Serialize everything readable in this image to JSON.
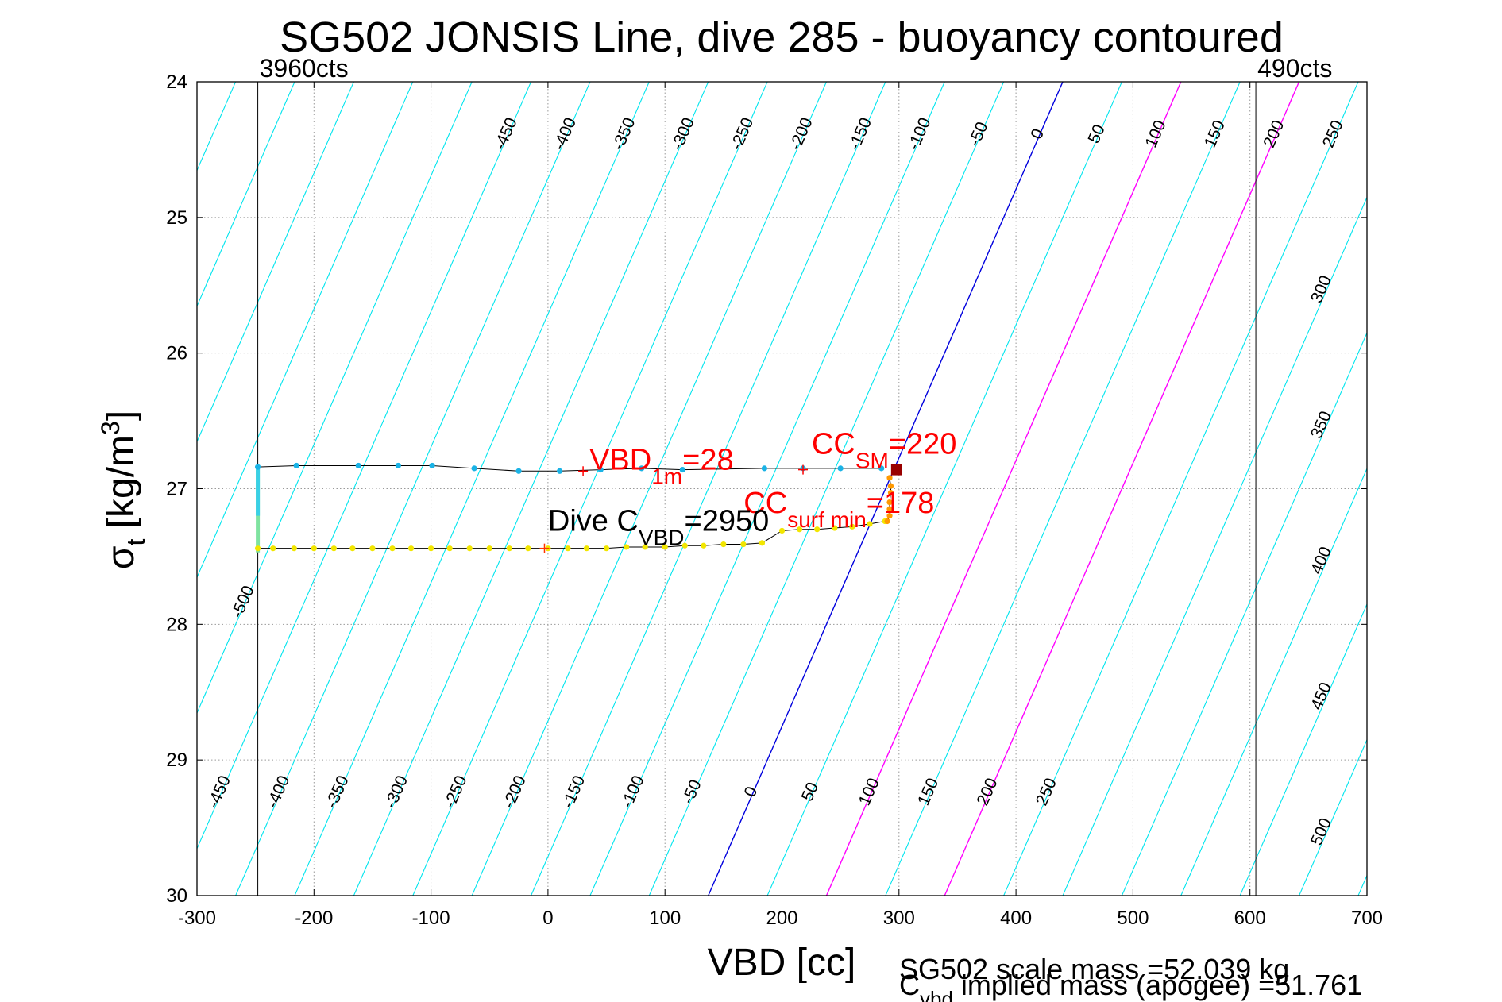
{
  "chart_data": {
    "type": "line",
    "title": "SG502 JONSIS Line, dive 285 - buoyancy contoured",
    "xlabel": "VBD [cc]",
    "ylabel": {
      "main": "σ",
      "sub": "t",
      "unit": " [kg/m",
      "sup": "3",
      "close": "]"
    },
    "xlim": [
      -300,
      700
    ],
    "ylim": [
      24,
      30
    ],
    "y_reversed": true,
    "grid": true,
    "xticks": [
      -300,
      -200,
      -100,
      0,
      100,
      200,
      300,
      400,
      500,
      600,
      700
    ],
    "yticks": [
      24,
      25,
      26,
      27,
      28,
      29,
      30
    ],
    "xtick_labels": [
      "-300",
      "-200",
      "-100",
      "0",
      "100",
      "200",
      "300",
      "400",
      "500",
      "600",
      "700"
    ],
    "ytick_labels": [
      "24",
      "25",
      "26",
      "27",
      "28",
      "29",
      "30"
    ],
    "vertical_limits": [
      {
        "x": -248,
        "label": "3960cts"
      },
      {
        "x": 605,
        "label": "490cts"
      }
    ],
    "buoyancy_contours": {
      "vbd_at_sigma24_for_0": 440,
      "vbd_per_sigma": -50.5,
      "vbd_per_gram": 1.01,
      "levels": [
        -500,
        -450,
        -400,
        -350,
        -300,
        -250,
        -200,
        -150,
        -100,
        -50,
        0,
        50,
        100,
        150,
        200,
        250,
        300,
        350,
        400,
        450,
        500
      ],
      "colors": {
        "default": "#00e5ee",
        "zero": "#0000dd",
        "highlight": "#ff00ff"
      },
      "highlight_levels": [
        100,
        200
      ],
      "top_labels": [
        "-450",
        "-400",
        "-350",
        "-300",
        "-250",
        "-200",
        "-150",
        "-100",
        "-50",
        "0",
        "50",
        "100",
        "150",
        "200",
        "250"
      ],
      "bottom_labels": [
        "-450",
        "-400",
        "-350",
        "-300",
        "-250",
        "-200",
        "-150",
        "-100",
        "-50",
        "0",
        "50",
        "100",
        "150",
        "200",
        "250"
      ],
      "right_labels": [
        "300",
        "350",
        "400",
        "450",
        "500"
      ],
      "left_labels": [
        "-500"
      ]
    },
    "series": [
      {
        "color": "#1ab3e6",
        "x": [
          -248,
          -215,
          -162,
          -128,
          -99,
          -63,
          -25,
          10,
          45,
          80,
          115,
          185,
          218,
          250,
          285
        ],
        "y": [
          26.84,
          26.83,
          26.83,
          26.83,
          26.83,
          26.85,
          26.87,
          26.87,
          26.86,
          26.85,
          26.86,
          26.85,
          26.85,
          26.85,
          26.85
        ]
      },
      {
        "color": "#f2e600",
        "x": [
          -248,
          -235,
          -217,
          -200,
          -183,
          -167,
          -150,
          -133,
          -117,
          -100,
          -84,
          -67,
          -50,
          -33,
          -17,
          0,
          17,
          33,
          50,
          67,
          83,
          100,
          117,
          133,
          150,
          167,
          183,
          200,
          215,
          230,
          245,
          260,
          275,
          288
        ],
        "y": [
          27.44,
          27.44,
          27.44,
          27.44,
          27.44,
          27.44,
          27.44,
          27.44,
          27.44,
          27.44,
          27.44,
          27.44,
          27.44,
          27.44,
          27.44,
          27.44,
          27.44,
          27.44,
          27.44,
          27.43,
          27.43,
          27.43,
          27.42,
          27.42,
          27.41,
          27.41,
          27.4,
          27.31,
          27.3,
          27.3,
          27.29,
          27.28,
          27.26,
          27.24
        ]
      },
      {
        "color": "#ff9900",
        "x": [
          290,
          292,
          292,
          292,
          293,
          293,
          292
        ],
        "y": [
          27.24,
          27.2,
          27.15,
          27.1,
          27.03,
          26.98,
          26.92
        ]
      }
    ],
    "markers": [
      {
        "x": 30,
        "y": 26.87,
        "symbol": "+",
        "color": "#ff0000"
      },
      {
        "x": 218,
        "y": 26.86,
        "symbol": "+",
        "color": "#ff0000"
      },
      {
        "x": -3,
        "y": 27.44,
        "symbol": "+",
        "color": "#ff3300"
      },
      {
        "x": 298,
        "y": 26.86,
        "symbol": "■",
        "color": "#990000"
      }
    ],
    "annotations": [
      {
        "x": 30,
        "y": 26.87,
        "color": "#ff0000",
        "main": "VBD",
        "sub": "1m",
        "tail": "=28"
      },
      {
        "x": 220,
        "y": 26.86,
        "color": "#ff0000",
        "main": "CC",
        "sub": "SM",
        "tail": "=220"
      },
      {
        "x": 170,
        "y": 27.06,
        "color": "#ff0000",
        "main": "CC",
        "sub": "surf min",
        "tail": "=178"
      },
      {
        "x": 0,
        "y": 27.38,
        "color": "#000000",
        "main": "Dive C",
        "sub": "VBD",
        "tail": "=2950"
      }
    ],
    "footer": {
      "line1": "SG502 scale mass =52.039 kg",
      "line2_main": "C",
      "line2_sub": "vbd",
      "line2_tail": " implied mass (apogee) =51.761"
    }
  }
}
